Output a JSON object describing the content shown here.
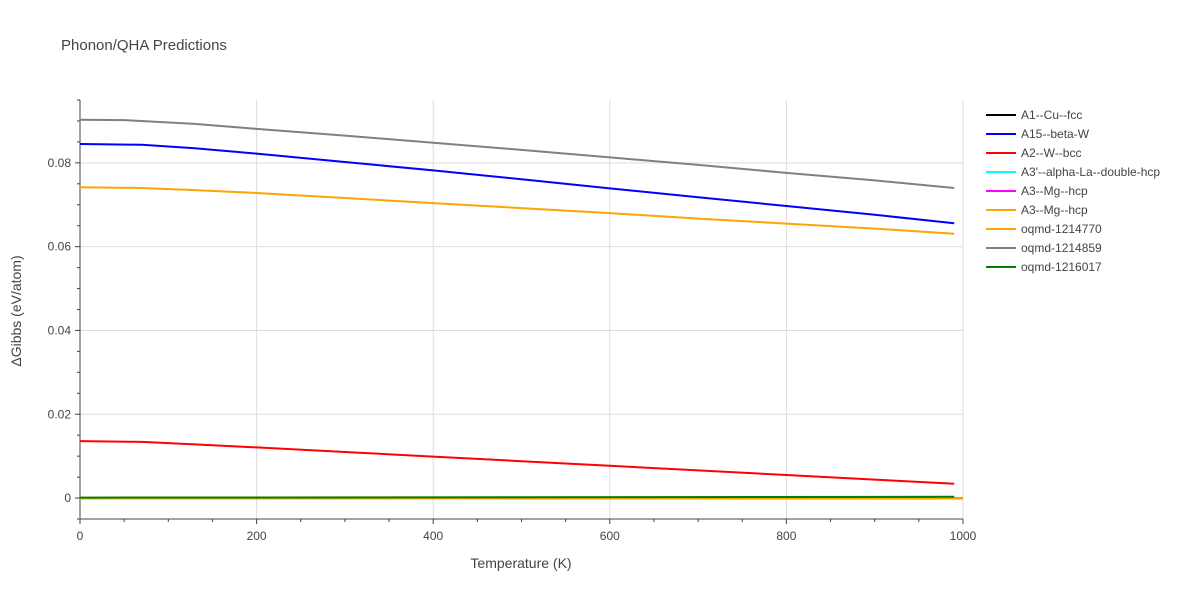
{
  "chart_data": {
    "type": "line",
    "title": "Phonon/QHA Predictions",
    "xlabel": "Temperature (K)",
    "ylabel": "ΔGibbs (eV/atom)",
    "xlim": [
      0,
      1000
    ],
    "ylim": [
      -0.005,
      0.095
    ],
    "grid": true,
    "legend_position": "right",
    "x_ticks": [
      0,
      200,
      400,
      600,
      800,
      1000
    ],
    "x_tick_labels": [
      "0",
      "200",
      "400",
      "600",
      "800",
      "1000"
    ],
    "y_ticks": [
      0,
      0.02,
      0.04,
      0.06,
      0.08
    ],
    "y_tick_labels": [
      "0",
      "0.02",
      "0.04",
      "0.06",
      "0.08"
    ],
    "series": [
      {
        "name": "A1--Cu--fcc",
        "color": "#000000",
        "x": [
          0,
          1000
        ],
        "y": [
          0,
          0
        ]
      },
      {
        "name": "A15--beta-W",
        "color": "#0000ff",
        "x": [
          0,
          70,
          130,
          200,
          300,
          400,
          500,
          600,
          700,
          800,
          900,
          990
        ],
        "y": [
          0.0845,
          0.0843,
          0.0835,
          0.0822,
          0.0802,
          0.0782,
          0.0761,
          0.0739,
          0.0718,
          0.0697,
          0.0676,
          0.0656
        ]
      },
      {
        "name": "A2--W--bcc",
        "color": "#ff0000",
        "x": [
          0,
          70,
          130,
          200,
          300,
          400,
          500,
          600,
          700,
          800,
          900,
          990
        ],
        "y": [
          0.0136,
          0.0134,
          0.0128,
          0.0121,
          0.011,
          0.0099,
          0.0088,
          0.0077,
          0.0066,
          0.0055,
          0.0044,
          0.0034
        ]
      },
      {
        "name": "A3'--alpha-La--double-hcp",
        "color": "#00ffff",
        "x": [
          0,
          1000
        ],
        "y": [
          0,
          0
        ]
      },
      {
        "name": "A3--Mg--hcp",
        "color": "#ff00ff",
        "x": [
          0,
          1000
        ],
        "y": [
          0,
          0
        ]
      },
      {
        "name": "A3--Mg--hcp",
        "color": "#ffa500",
        "x": [
          0,
          1000
        ],
        "y": [
          0,
          0
        ]
      },
      {
        "name": "oqmd-1214770",
        "color": "#ffa500",
        "x": [
          0,
          70,
          130,
          200,
          300,
          400,
          500,
          600,
          700,
          800,
          900,
          990
        ],
        "y": [
          0.0742,
          0.074,
          0.0735,
          0.0728,
          0.0716,
          0.0704,
          0.0692,
          0.068,
          0.0667,
          0.0655,
          0.0643,
          0.0631
        ]
      },
      {
        "name": "oqmd-1214859",
        "color": "#808080",
        "x": [
          0,
          50,
          130,
          200,
          300,
          400,
          500,
          600,
          700,
          800,
          900,
          990
        ],
        "y": [
          0.0903,
          0.0902,
          0.0893,
          0.0881,
          0.0865,
          0.0848,
          0.0831,
          0.0813,
          0.0795,
          0.0776,
          0.0758,
          0.074
        ]
      },
      {
        "name": "oqmd-1216017",
        "color": "#008000",
        "x": [
          0,
          500,
          990
        ],
        "y": [
          0.0001,
          0.0002,
          0.0003
        ]
      }
    ]
  }
}
